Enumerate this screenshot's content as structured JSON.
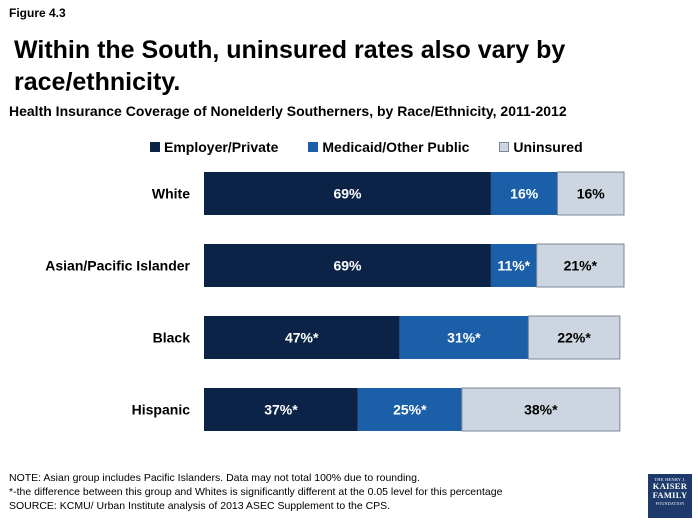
{
  "figure_label": "Figure 4.3",
  "title": "Within the South, uninsured rates also vary by race/ethnicity.",
  "subtitle": "Health Insurance Coverage of Nonelderly Southerners, by Race/Ethnicity, 2011-2012",
  "colors": {
    "employer_private": "#0b2346",
    "medicaid_public": "#1a5fa8",
    "uninsured": "#cdd6e0",
    "uninsured_border": "#7b8899"
  },
  "chart_data": {
    "type": "bar",
    "orientation": "horizontal",
    "stacked": true,
    "legend_position": "top",
    "categories": [
      "White",
      "Asian/Pacific Islander",
      "Black",
      "Hispanic"
    ],
    "series": [
      {
        "name": "Employer/Private",
        "values": [
          69,
          69,
          47,
          37
        ],
        "labels": [
          "69%",
          "69%",
          "47%*",
          "37%*"
        ]
      },
      {
        "name": "Medicaid/Other Public",
        "values": [
          16,
          11,
          31,
          25
        ],
        "labels": [
          "16%",
          "11%*",
          "31%*",
          "25%*"
        ]
      },
      {
        "name": "Uninsured",
        "values": [
          16,
          21,
          22,
          38
        ],
        "labels": [
          "16%",
          "21%*",
          "22%*",
          "38%*"
        ]
      }
    ],
    "xlim": [
      0,
      101
    ]
  },
  "notes": [
    "NOTE: Asian group includes Pacific Islanders. Data may not total 100% due to rounding.",
    "*-the difference between this group and Whites is significantly different at the 0.05 level for this percentage",
    "SOURCE: KCMU/ Urban Institute analysis of 2013 ASEC Supplement to the CPS."
  ],
  "logo": {
    "line1": "THE HENRY J.",
    "line2": "KAISER",
    "line3": "FAMILY",
    "line4": "FOUNDATION"
  }
}
